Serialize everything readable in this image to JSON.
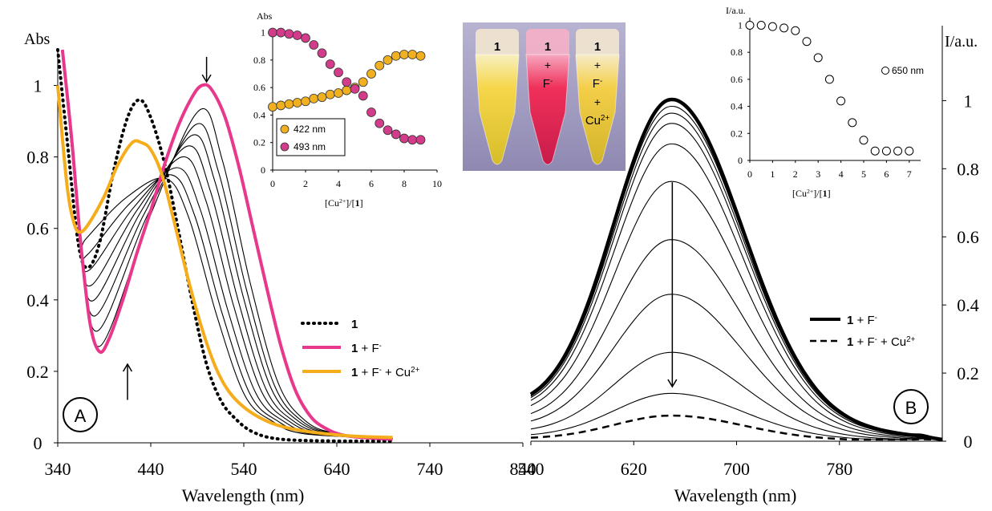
{
  "colors": {
    "pink": "#e8388c",
    "orange": "#f5ad1c",
    "magenta_dot": "#d23c8a",
    "gold_dot": "#f0b020",
    "photo_bg": "#a8a2c6"
  },
  "chart_data": [
    {
      "id": "A",
      "type": "line",
      "panel_label": "A",
      "ylabel": "Abs",
      "xlabel": "Wavelength (nm)",
      "x_ticks": [
        "340",
        "440",
        "540",
        "640",
        "740",
        "840"
      ],
      "y_ticks": [
        "0",
        "0.2",
        "0.4",
        "0.6",
        "0.8",
        "1"
      ],
      "xlim": [
        340,
        840
      ],
      "ylim": [
        0,
        1.1
      ],
      "legend": {
        "entries": [
          {
            "bold": "1",
            "rest": "",
            "sup": "",
            "rest2": "",
            "sup2": ""
          },
          {
            "bold": "1",
            "rest": " + F",
            "sup": "-",
            "rest2": "",
            "sup2": ""
          },
          {
            "bold": "1",
            "rest": " + F",
            "sup": "-",
            "rest2": " + Cu",
            "sup2": "2+"
          }
        ]
      },
      "series": [
        {
          "name": "1",
          "style": "dotted",
          "points": [
            [
              340,
              1.1
            ],
            [
              350,
              0.85
            ],
            [
              362,
              0.56
            ],
            [
              372,
              0.49
            ],
            [
              385,
              0.56
            ],
            [
              400,
              0.76
            ],
            [
              415,
              0.91
            ],
            [
              428,
              0.96
            ],
            [
              440,
              0.91
            ],
            [
              455,
              0.78
            ],
            [
              470,
              0.59
            ],
            [
              485,
              0.39
            ],
            [
              500,
              0.22
            ],
            [
              515,
              0.12
            ],
            [
              530,
              0.07
            ],
            [
              550,
              0.03
            ],
            [
              580,
              0.01
            ],
            [
              640,
              0.005
            ],
            [
              700,
              0.005
            ]
          ]
        },
        {
          "name": "1 + F-",
          "style": "pink",
          "points": [
            [
              345,
              1.1
            ],
            [
              355,
              0.85
            ],
            [
              365,
              0.55
            ],
            [
              375,
              0.33
            ],
            [
              385,
              0.255
            ],
            [
              395,
              0.29
            ],
            [
              410,
              0.4
            ],
            [
              425,
              0.53
            ],
            [
              440,
              0.65
            ],
            [
              455,
              0.78
            ],
            [
              470,
              0.89
            ],
            [
              485,
              0.97
            ],
            [
              495,
              1.0
            ],
            [
              505,
              0.99
            ],
            [
              520,
              0.91
            ],
            [
              535,
              0.77
            ],
            [
              550,
              0.6
            ],
            [
              565,
              0.43
            ],
            [
              580,
              0.27
            ],
            [
              595,
              0.15
            ],
            [
              610,
              0.08
            ],
            [
              625,
              0.045
            ],
            [
              650,
              0.02
            ],
            [
              700,
              0.01
            ]
          ]
        },
        {
          "name": "1 + F- + Cu2+",
          "style": "orange",
          "points": [
            [
              340,
              1.0
            ],
            [
              350,
              0.72
            ],
            [
              358,
              0.61
            ],
            [
              365,
              0.59
            ],
            [
              375,
              0.62
            ],
            [
              390,
              0.69
            ],
            [
              405,
              0.78
            ],
            [
              420,
              0.84
            ],
            [
              430,
              0.84
            ],
            [
              440,
              0.82
            ],
            [
              452,
              0.75
            ],
            [
              465,
              0.62
            ],
            [
              480,
              0.46
            ],
            [
              495,
              0.32
            ],
            [
              510,
              0.21
            ],
            [
              525,
              0.14
            ],
            [
              545,
              0.09
            ],
            [
              570,
              0.055
            ],
            [
              600,
              0.035
            ],
            [
              650,
              0.02
            ],
            [
              700,
              0.015
            ]
          ]
        }
      ],
      "titration_peaks_abs": [
        0.93,
        0.89,
        0.86,
        0.83,
        0.8,
        0.77,
        0.75,
        0.74
      ],
      "titration_peaks_nm": [
        492,
        488,
        484,
        479,
        474,
        468,
        462,
        456
      ],
      "arrows": [
        {
          "at_x": 500,
          "from_y": 1.08,
          "to_y": 1.01,
          "dir": "down"
        },
        {
          "at_x": 415,
          "from_y": 0.12,
          "to_y": 0.22,
          "dir": "up"
        }
      ]
    },
    {
      "id": "A-inset",
      "type": "scatter",
      "ylabel": "Abs",
      "xlabel_parts": [
        "[Cu",
        "2+",
        "]/[",
        "1",
        "]"
      ],
      "x_ticks": [
        "0",
        "2",
        "4",
        "6",
        "8",
        "10"
      ],
      "y_ticks": [
        "0",
        "0.2",
        "0.4",
        "0.6",
        "0.8",
        "1"
      ],
      "xlim": [
        0,
        10
      ],
      "ylim": [
        0,
        1.05
      ],
      "legend": [
        "422 nm",
        "493 nm"
      ],
      "series": [
        {
          "name": "422 nm",
          "x": [
            0,
            0.5,
            1,
            1.5,
            2,
            2.5,
            3,
            3.5,
            4,
            4.5,
            5,
            5.5,
            6,
            6.5,
            7,
            7.5,
            8,
            8.5,
            9
          ],
          "y": [
            0.46,
            0.47,
            0.48,
            0.49,
            0.5,
            0.52,
            0.53,
            0.55,
            0.56,
            0.58,
            0.6,
            0.64,
            0.7,
            0.76,
            0.8,
            0.83,
            0.84,
            0.84,
            0.83
          ]
        },
        {
          "name": "493 nm",
          "x": [
            0,
            0.5,
            1,
            1.5,
            2,
            2.5,
            3,
            3.5,
            4,
            4.5,
            5,
            5.5,
            6,
            6.5,
            7,
            7.5,
            8,
            8.5,
            9
          ],
          "y": [
            1.0,
            1.0,
            0.99,
            0.98,
            0.96,
            0.91,
            0.85,
            0.77,
            0.71,
            0.64,
            0.59,
            0.54,
            0.42,
            0.34,
            0.29,
            0.26,
            0.23,
            0.22,
            0.22
          ]
        }
      ]
    },
    {
      "id": "B",
      "type": "line",
      "panel_label": "B",
      "ylabel": "I/a.u.",
      "xlabel": "Wavelength (nm)",
      "x_ticks": [
        "540",
        "620",
        "700",
        "780"
      ],
      "y_ticks": [
        "0",
        "0.2",
        "0.4",
        "0.6",
        "0.8",
        "1"
      ],
      "xlim": [
        540,
        860
      ],
      "ylim": [
        0,
        1.22
      ],
      "legend": {
        "entries": [
          {
            "bold": "1",
            "rest": " + F",
            "sup": "-",
            "rest2": "",
            "sup2": ""
          },
          {
            "bold": "1",
            "rest": " + F",
            "sup": "-",
            "rest2": " + Cu",
            "sup2": "2+"
          }
        ]
      },
      "peak_nm": 650,
      "peak_series": [
        1.0,
        0.98,
        0.96,
        0.93,
        0.87,
        0.76,
        0.59,
        0.43,
        0.26,
        0.14
      ],
      "final_peak": 0.075,
      "arrows": [
        {
          "at_x": 650,
          "from_y": 0.76,
          "to_y": 0.16,
          "dir": "down"
        }
      ],
      "series": [
        {
          "name": "1 + F-",
          "style": "bold",
          "peak": 1.0
        },
        {
          "name": "1 + F- + Cu2+",
          "style": "dashed",
          "peak": 0.075
        }
      ]
    },
    {
      "id": "B-inset",
      "type": "scatter",
      "ylabel": "I/a.u.",
      "xlabel_parts": [
        "[Cu",
        "2+",
        "]/[",
        "1",
        "]"
      ],
      "x_ticks": [
        "0",
        "1",
        "2",
        "3",
        "4",
        "5",
        "6",
        "7"
      ],
      "y_ticks": [
        "0",
        "0.2",
        "0.4",
        "0.6",
        "0.8",
        "1"
      ],
      "xlim": [
        0,
        7.5
      ],
      "ylim": [
        0,
        1.08
      ],
      "legend": [
        "650 nm"
      ],
      "series": [
        {
          "name": "650 nm",
          "x": [
            0,
            0.5,
            1,
            1.5,
            2,
            2.5,
            3,
            3.5,
            4,
            4.5,
            5,
            5.5,
            6,
            6.5,
            7
          ],
          "y": [
            1.0,
            1.0,
            0.99,
            0.98,
            0.96,
            0.88,
            0.76,
            0.6,
            0.44,
            0.28,
            0.15,
            0.07,
            0.07,
            0.07,
            0.07
          ]
        }
      ]
    }
  ],
  "photo": {
    "tubes": [
      {
        "lines": [
          "1"
        ]
      },
      {
        "lines": [
          "1",
          "+",
          "F-"
        ]
      },
      {
        "lines": [
          "1",
          "+",
          "F-",
          "+",
          "Cu2+"
        ]
      }
    ]
  }
}
